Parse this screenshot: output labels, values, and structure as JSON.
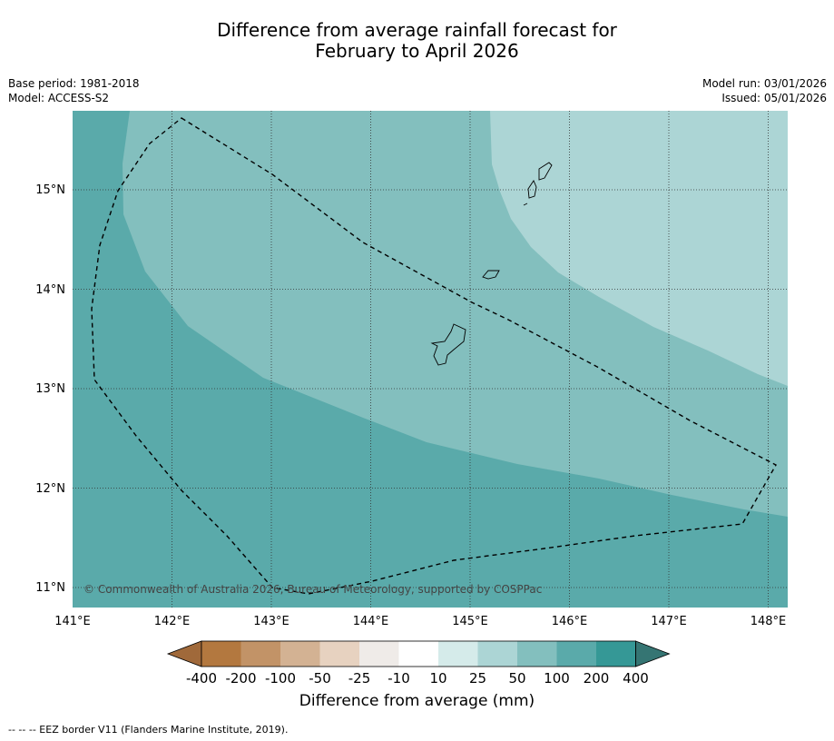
{
  "title_line1": "Difference from average rainfall forecast for",
  "title_line2": "February to April 2026",
  "meta_left": {
    "base_period": "Base period: 1981-2018",
    "model": "Model: ACCESS-S2"
  },
  "meta_right": {
    "model_run": "Model run: 03/01/2026",
    "issued": "Issued: 05/01/2026"
  },
  "map": {
    "lon_range": [
      141.0,
      148.2
    ],
    "lat_range": [
      10.8,
      15.8
    ],
    "lon_ticks": [
      "141°E",
      "142°E",
      "143°E",
      "144°E",
      "145°E",
      "146°E",
      "147°E",
      "148°E"
    ],
    "lat_ticks": [
      "15°N",
      "14°N",
      "13°N",
      "12°N",
      "11°N"
    ],
    "copyright": "© Commonwealth of Australia 2026, Bureau of Meteorology, supported by COSPPac"
  },
  "colorbar": {
    "labels": [
      "-400",
      "-200",
      "-100",
      "-50",
      "-25",
      "-10",
      "10",
      "25",
      "50",
      "100",
      "200",
      "400"
    ],
    "colors": [
      "#a0693a",
      "#b3783f",
      "#c29367",
      "#d3b293",
      "#e7d2c0",
      "#efebe8",
      "#ffffff",
      "#d5ebea",
      "#acd5d5",
      "#83bfbe",
      "#5aaaaa",
      "#359896",
      "#357573"
    ],
    "title": "Difference from average (mm)"
  },
  "footer": "--  --  -- EEZ border V11 (Flanders Marine Institute, 2019)."
}
